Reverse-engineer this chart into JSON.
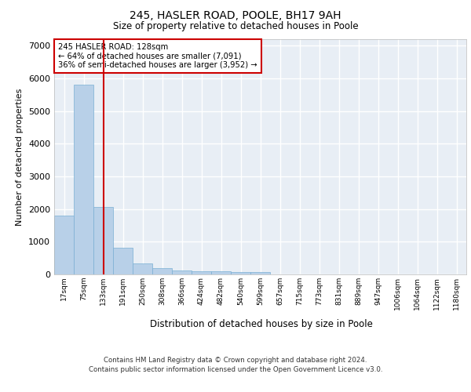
{
  "title_line1": "245, HASLER ROAD, POOLE, BH17 9AH",
  "title_line2": "Size of property relative to detached houses in Poole",
  "xlabel": "Distribution of detached houses by size in Poole",
  "ylabel": "Number of detached properties",
  "bar_labels": [
    "17sqm",
    "75sqm",
    "133sqm",
    "191sqm",
    "250sqm",
    "308sqm",
    "366sqm",
    "424sqm",
    "482sqm",
    "540sqm",
    "599sqm",
    "657sqm",
    "715sqm",
    "773sqm",
    "831sqm",
    "889sqm",
    "947sqm",
    "1006sqm",
    "1064sqm",
    "1122sqm",
    "1180sqm"
  ],
  "bar_values": [
    1800,
    5820,
    2060,
    825,
    345,
    190,
    125,
    105,
    95,
    75,
    65,
    0,
    0,
    0,
    0,
    0,
    0,
    0,
    0,
    0,
    0
  ],
  "bar_color": "#b8d0e8",
  "bar_edge_color": "#7aafd4",
  "vline_x": 2.0,
  "vline_color": "#cc0000",
  "annotation_line1": "245 HASLER ROAD: 128sqm",
  "annotation_line2": "← 64% of detached houses are smaller (7,091)",
  "annotation_line3": "36% of semi-detached houses are larger (3,952) →",
  "annotation_box_color": "#cc0000",
  "ylim": [
    0,
    7200
  ],
  "yticks": [
    0,
    1000,
    2000,
    3000,
    4000,
    5000,
    6000,
    7000
  ],
  "plot_bg_color": "#e8eef5",
  "footer_line1": "Contains HM Land Registry data © Crown copyright and database right 2024.",
  "footer_line2": "Contains public sector information licensed under the Open Government Licence v3.0."
}
